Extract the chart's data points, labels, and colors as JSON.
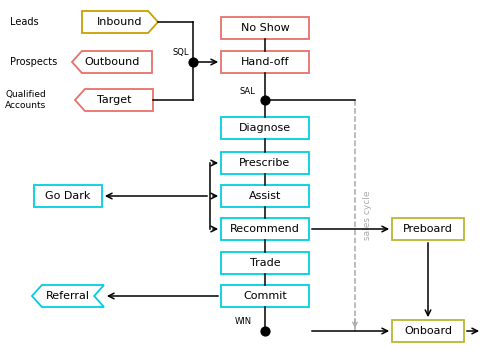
{
  "fig_width": 4.82,
  "fig_height": 3.51,
  "dpi": 100,
  "background": "#ffffff",
  "cyan_color": "#00cfde",
  "red_color": "#e8706a",
  "gold_color": "#c8a000",
  "olive_color": "#b8b832",
  "black": "#000000",
  "gray_dash": "#aaaaaa",
  "labels": {
    "leads": "Leads",
    "prospects": "Prospects",
    "qualified": "Qualified\nAccounts",
    "inbound": "Inbound",
    "outbound": "Outbound",
    "target": "Target",
    "no_show": "No Show",
    "handoff": "Hand-off",
    "diagnose": "Diagnose",
    "prescribe": "Prescribe",
    "assist": "Assist",
    "recommend": "Recommend",
    "trade": "Trade",
    "commit": "Commit",
    "go_dark": "Go Dark",
    "referral": "Referral",
    "preboard": "Preboard",
    "onboard": "Onboard",
    "sql": "SQL",
    "sal": "SAL",
    "win": "WIN",
    "sales_cycle": "sales cycle"
  }
}
